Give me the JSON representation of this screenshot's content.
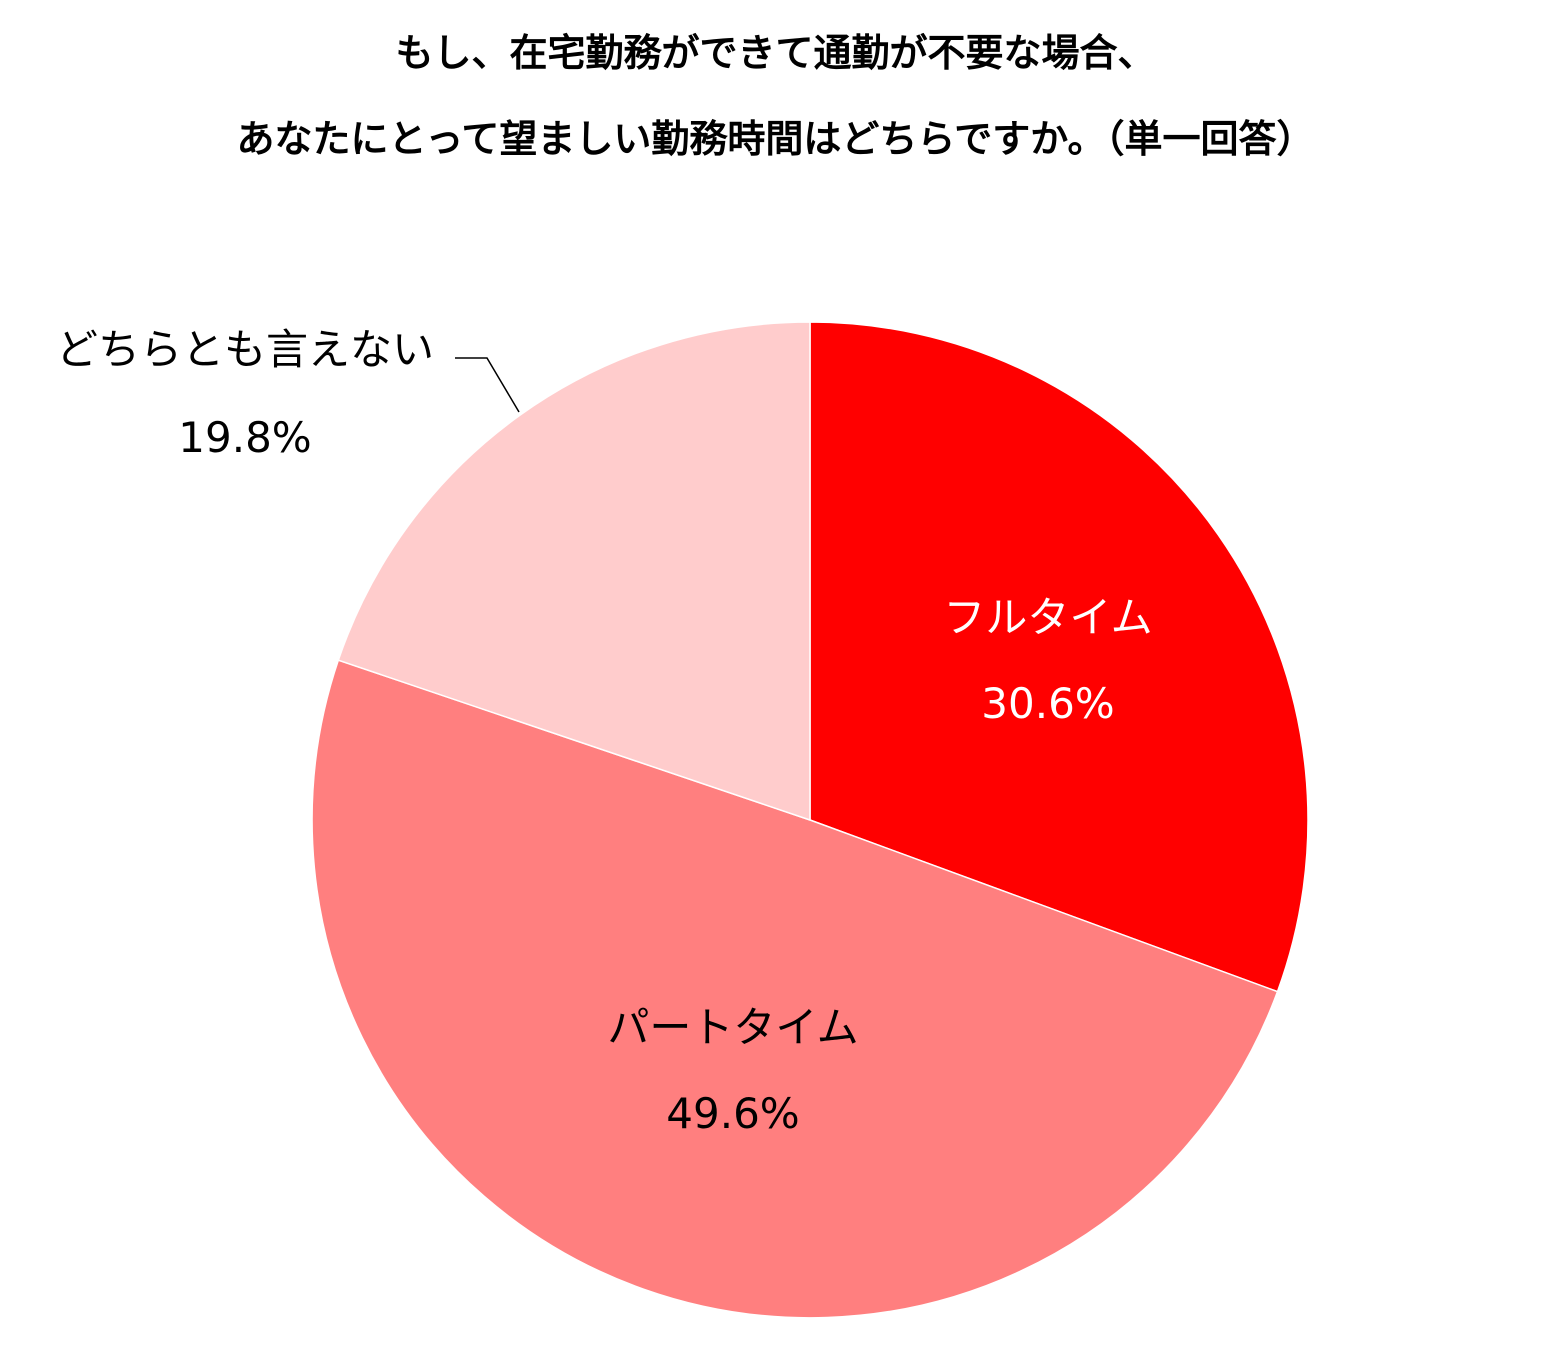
{
  "chart_data": {
    "type": "pie",
    "title": "もし、在宅勤務ができて通勤が不要な場合、",
    "subtitle": "あなたにとって望ましい勤務時間はどちらですか。（単一回答）",
    "start_angle_deg": 0,
    "direction": "clockwise",
    "legend": "none",
    "slices": [
      {
        "name": "フルタイム",
        "value": 30.6,
        "label": "30.6%",
        "color": "#ff0000",
        "label_color": "#ffffff"
      },
      {
        "name": "パートタイム",
        "value": 49.6,
        "label": "49.6%",
        "color": "#ff7f7f",
        "label_color": "#000000"
      },
      {
        "name": "どちらとも言えない",
        "value": 19.8,
        "label": "19.8%",
        "color": "#ffcccc",
        "label_color": "#000000"
      }
    ]
  }
}
